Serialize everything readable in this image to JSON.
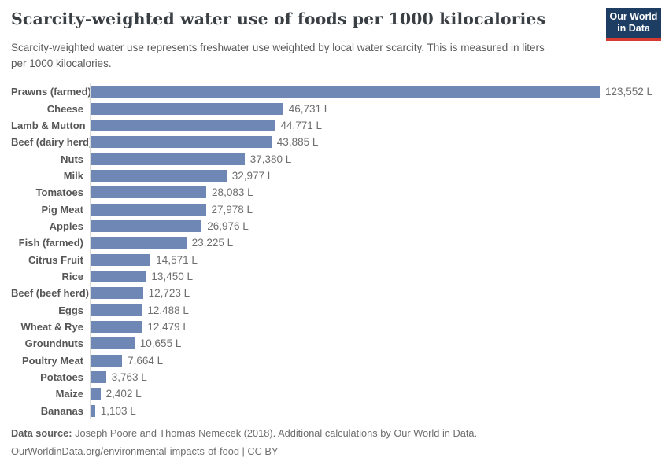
{
  "header": {
    "title": "Scarcity-weighted water use of foods per 1000 kilocalories",
    "subtitle": "Scarcity-weighted water use represents freshwater use weighted by local water scarcity. This is measured in liters per 1000 kilocalories.",
    "logo": {
      "line1": "Our World",
      "line2": "in Data"
    }
  },
  "chart_data": {
    "type": "bar",
    "orientation": "horizontal",
    "title": "Scarcity-weighted water use of foods per 1000 kilocalories",
    "unit": "liters per 1000 kilocalories",
    "xlim": [
      0,
      123552
    ],
    "grid": false,
    "categories": [
      "Prawns (farmed)",
      "Cheese",
      "Lamb & Mutton",
      "Beef (dairy herd)",
      "Nuts",
      "Milk",
      "Tomatoes",
      "Pig Meat",
      "Apples",
      "Fish (farmed)",
      "Citrus Fruit",
      "Rice",
      "Beef (beef herd)",
      "Eggs",
      "Wheat & Rye",
      "Groundnuts",
      "Poultry Meat",
      "Potatoes",
      "Maize",
      "Bananas"
    ],
    "values": [
      123552,
      46731,
      44771,
      43885,
      37380,
      32977,
      28083,
      27978,
      26976,
      23225,
      14571,
      13450,
      12723,
      12488,
      12479,
      10655,
      7664,
      3763,
      2402,
      1103
    ],
    "value_labels": [
      "123,552 L",
      "46,731 L",
      "44,771 L",
      "43,885 L",
      "37,380 L",
      "32,977 L",
      "28,083 L",
      "27,978 L",
      "26,976 L",
      "23,225 L",
      "14,571 L",
      "13,450 L",
      "12,723 L",
      "12,488 L",
      "12,479 L",
      "10,655 L",
      "7,664 L",
      "3,763 L",
      "2,402 L",
      "1,103 L"
    ]
  },
  "colors": {
    "bar": "#6e87b4",
    "axis_line": "#d9d9d9",
    "title_text": "#3a3f44",
    "subtitle_text": "#5a5a5a",
    "category_label": "#565656",
    "value_label": "#6e6e6e",
    "logo_background": "#1d3d63",
    "logo_accent": "#d73a31"
  },
  "footer": {
    "datasource_label": "Data source:",
    "datasource_text": " Joseph Poore and Thomas Nemecek (2018). Additional calculations by Our World in Data.",
    "url_line": "OurWorldinData.org/environmental-impacts-of-food | CC BY"
  }
}
